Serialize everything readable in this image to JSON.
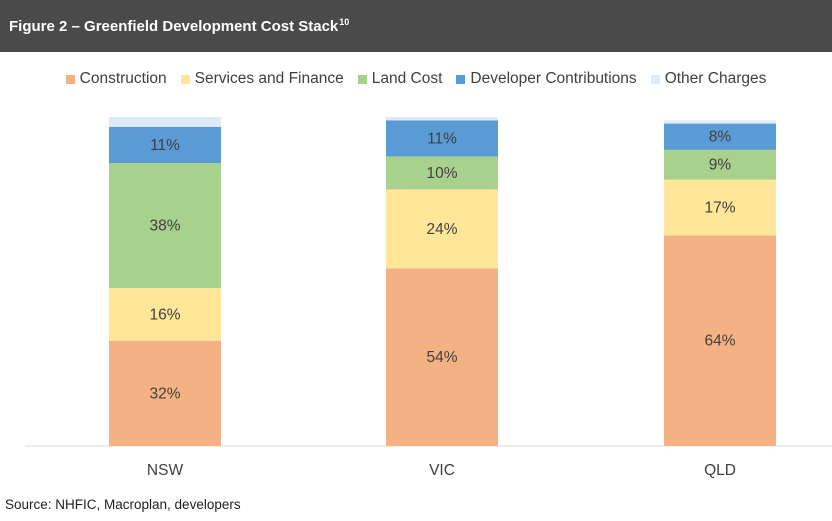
{
  "header": {
    "title": "Figure 2 – Greenfield Development Cost Stack",
    "footnote": "10"
  },
  "source_note": "Source: NHFIC, Macroplan, developers",
  "chart_data": {
    "type": "bar",
    "stacked": true,
    "percent_stacked": true,
    "title": "Figure 2 – Greenfield Development Cost Stack",
    "xlabel": "",
    "ylabel": "",
    "ylim": [
      0,
      100
    ],
    "grid": false,
    "legend_position": "top",
    "categories": [
      "NSW",
      "VIC",
      "QLD"
    ],
    "series": [
      {
        "name": "Construction",
        "color": "#f4b183",
        "values": [
          32,
          54,
          64
        ],
        "labels": [
          "32%",
          "54%",
          "64%"
        ]
      },
      {
        "name": "Services and Finance",
        "color": "#ffe699",
        "values": [
          16,
          24,
          17
        ],
        "labels": [
          "16%",
          "24%",
          "17%"
        ]
      },
      {
        "name": "Land Cost",
        "color": "#a9d18e",
        "values": [
          38,
          10,
          9
        ],
        "labels": [
          "38%",
          "10%",
          "9%"
        ]
      },
      {
        "name": "Developer Contributions",
        "color": "#5b9bd5",
        "values": [
          11,
          11,
          8
        ],
        "labels": [
          "11%",
          "11%",
          "8%"
        ]
      },
      {
        "name": "Other Charges",
        "color": "#deebf7",
        "values": [
          3,
          1,
          1
        ],
        "labels": [
          "",
          "",
          ""
        ]
      }
    ]
  }
}
